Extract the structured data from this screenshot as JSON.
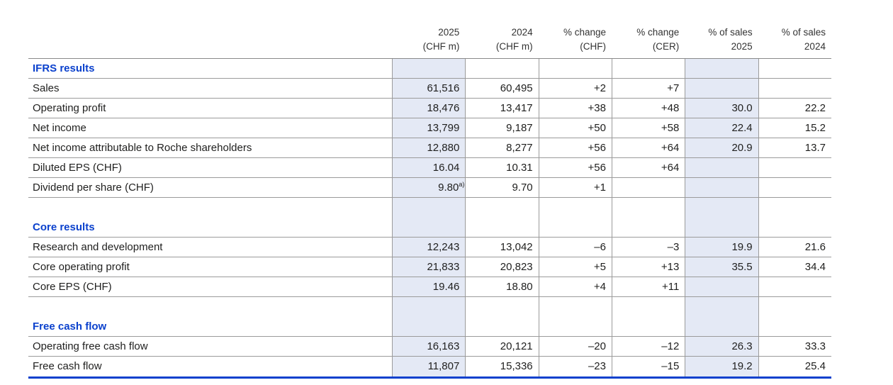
{
  "colors": {
    "accent_blue": "#0b41cd",
    "column_highlight": "#e4e9f5",
    "grid_line": "#9b9b9b"
  },
  "table": {
    "header": {
      "columns": [
        {
          "line1": "2025",
          "line2": "(CHF m)",
          "highlight": true
        },
        {
          "line1": "2024",
          "line2": "(CHF m)",
          "highlight": false
        },
        {
          "line1": "% change",
          "line2": "(CHF)",
          "highlight": false
        },
        {
          "line1": "% change",
          "line2": "(CER)",
          "highlight": false
        },
        {
          "line1": "% of sales",
          "line2": "2025",
          "highlight": true
        },
        {
          "line1": "% of sales",
          "line2": "2024",
          "highlight": false
        }
      ]
    },
    "sections": [
      {
        "heading": "IFRS results",
        "spacer_before": false,
        "rows": [
          {
            "label": "Sales",
            "values": [
              "61,516",
              "60,495",
              "+2",
              "+7",
              "",
              ""
            ]
          },
          {
            "label": "Operating profit",
            "values": [
              "18,476",
              "13,417",
              "+38",
              "+48",
              "30.0",
              "22.2"
            ]
          },
          {
            "label": "Net income",
            "values": [
              "13,799",
              "9,187",
              "+50",
              "+58",
              "22.4",
              "15.2"
            ]
          },
          {
            "label": "Net income attributable to Roche shareholders",
            "values": [
              "12,880",
              "8,277",
              "+56",
              "+64",
              "20.9",
              "13.7"
            ]
          },
          {
            "label": "Diluted EPS (CHF)",
            "values": [
              "16.04",
              "10.31",
              "+56",
              "+64",
              "",
              ""
            ]
          },
          {
            "label": "Dividend per share (CHF)",
            "values": [
              "9.80",
              "9.70",
              "+1",
              "",
              "",
              ""
            ],
            "sup0": "a)"
          }
        ]
      },
      {
        "heading": "Core results",
        "spacer_before": true,
        "rows": [
          {
            "label": "Research and development",
            "values": [
              "12,243",
              "13,042",
              "–6",
              "–3",
              "19.9",
              "21.6"
            ]
          },
          {
            "label": "Core operating profit",
            "values": [
              "21,833",
              "20,823",
              "+5",
              "+13",
              "35.5",
              "34.4"
            ]
          },
          {
            "label": "Core EPS (CHF)",
            "values": [
              "19.46",
              "18.80",
              "+4",
              "+11",
              "",
              ""
            ]
          }
        ]
      },
      {
        "heading": "Free cash flow",
        "spacer_before": true,
        "rows": [
          {
            "label": "Operating free cash flow",
            "values": [
              "16,163",
              "20,121",
              "–20",
              "–12",
              "26.3",
              "33.3"
            ]
          },
          {
            "label": "Free cash flow",
            "values": [
              "11,807",
              "15,336",
              "–23",
              "–15",
              "19.2",
              "25.4"
            ]
          }
        ]
      }
    ]
  }
}
